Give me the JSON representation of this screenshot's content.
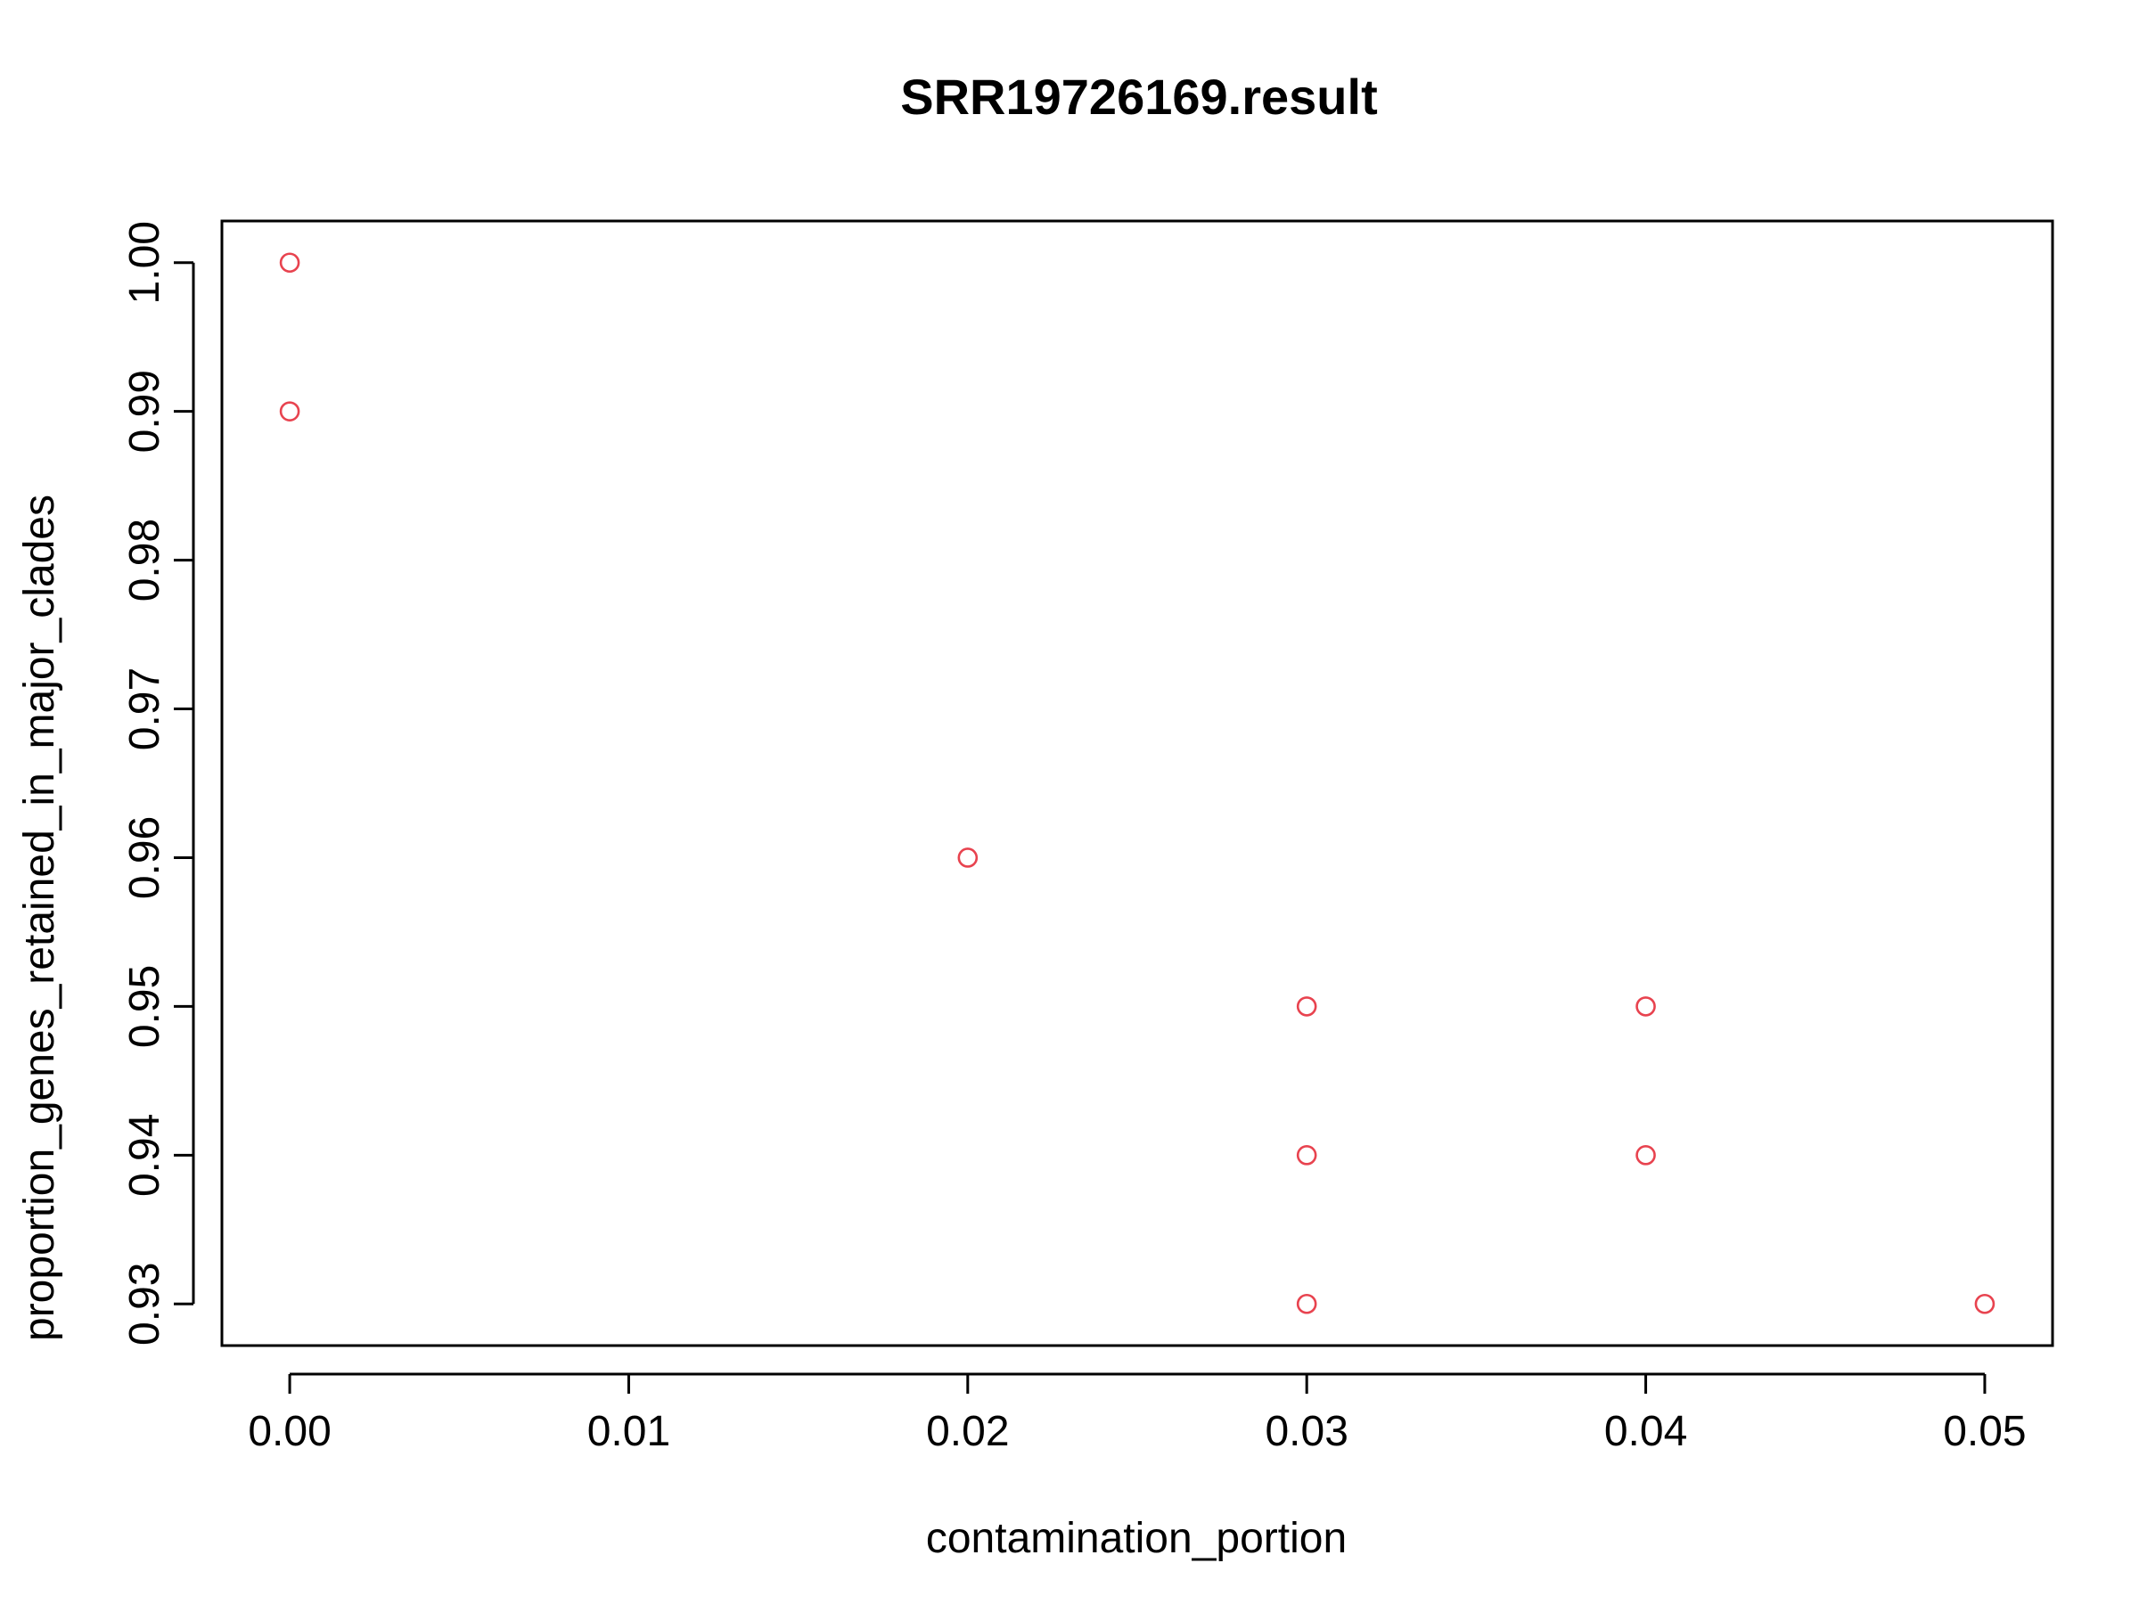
{
  "chart_data": {
    "type": "scatter",
    "title": "SRR19726169.result",
    "xlabel": "contamination_portion",
    "ylabel": "proportion_genes_retained_in_major_clades",
    "xlim": [
      -0.002,
      0.052
    ],
    "ylim": [
      0.9272,
      1.0028
    ],
    "x_ticks": [
      0.0,
      0.01,
      0.02,
      0.03,
      0.04,
      0.05
    ],
    "x_tick_labels": [
      "0.00",
      "0.01",
      "0.02",
      "0.03",
      "0.04",
      "0.05"
    ],
    "y_ticks": [
      0.93,
      0.94,
      0.95,
      0.96,
      0.97,
      0.98,
      0.99,
      1.0
    ],
    "y_tick_labels": [
      "0.93",
      "0.94",
      "0.95",
      "0.96",
      "0.97",
      "0.98",
      "0.99",
      "1.00"
    ],
    "grid": false,
    "marker": "open-circle",
    "marker_color": "#e8434f",
    "points": [
      {
        "x": 0.0,
        "y": 1.0
      },
      {
        "x": 0.0,
        "y": 0.99
      },
      {
        "x": 0.02,
        "y": 0.96
      },
      {
        "x": 0.03,
        "y": 0.95
      },
      {
        "x": 0.03,
        "y": 0.94
      },
      {
        "x": 0.03,
        "y": 0.93
      },
      {
        "x": 0.04,
        "y": 0.95
      },
      {
        "x": 0.04,
        "y": 0.94
      },
      {
        "x": 0.05,
        "y": 0.93
      }
    ]
  }
}
